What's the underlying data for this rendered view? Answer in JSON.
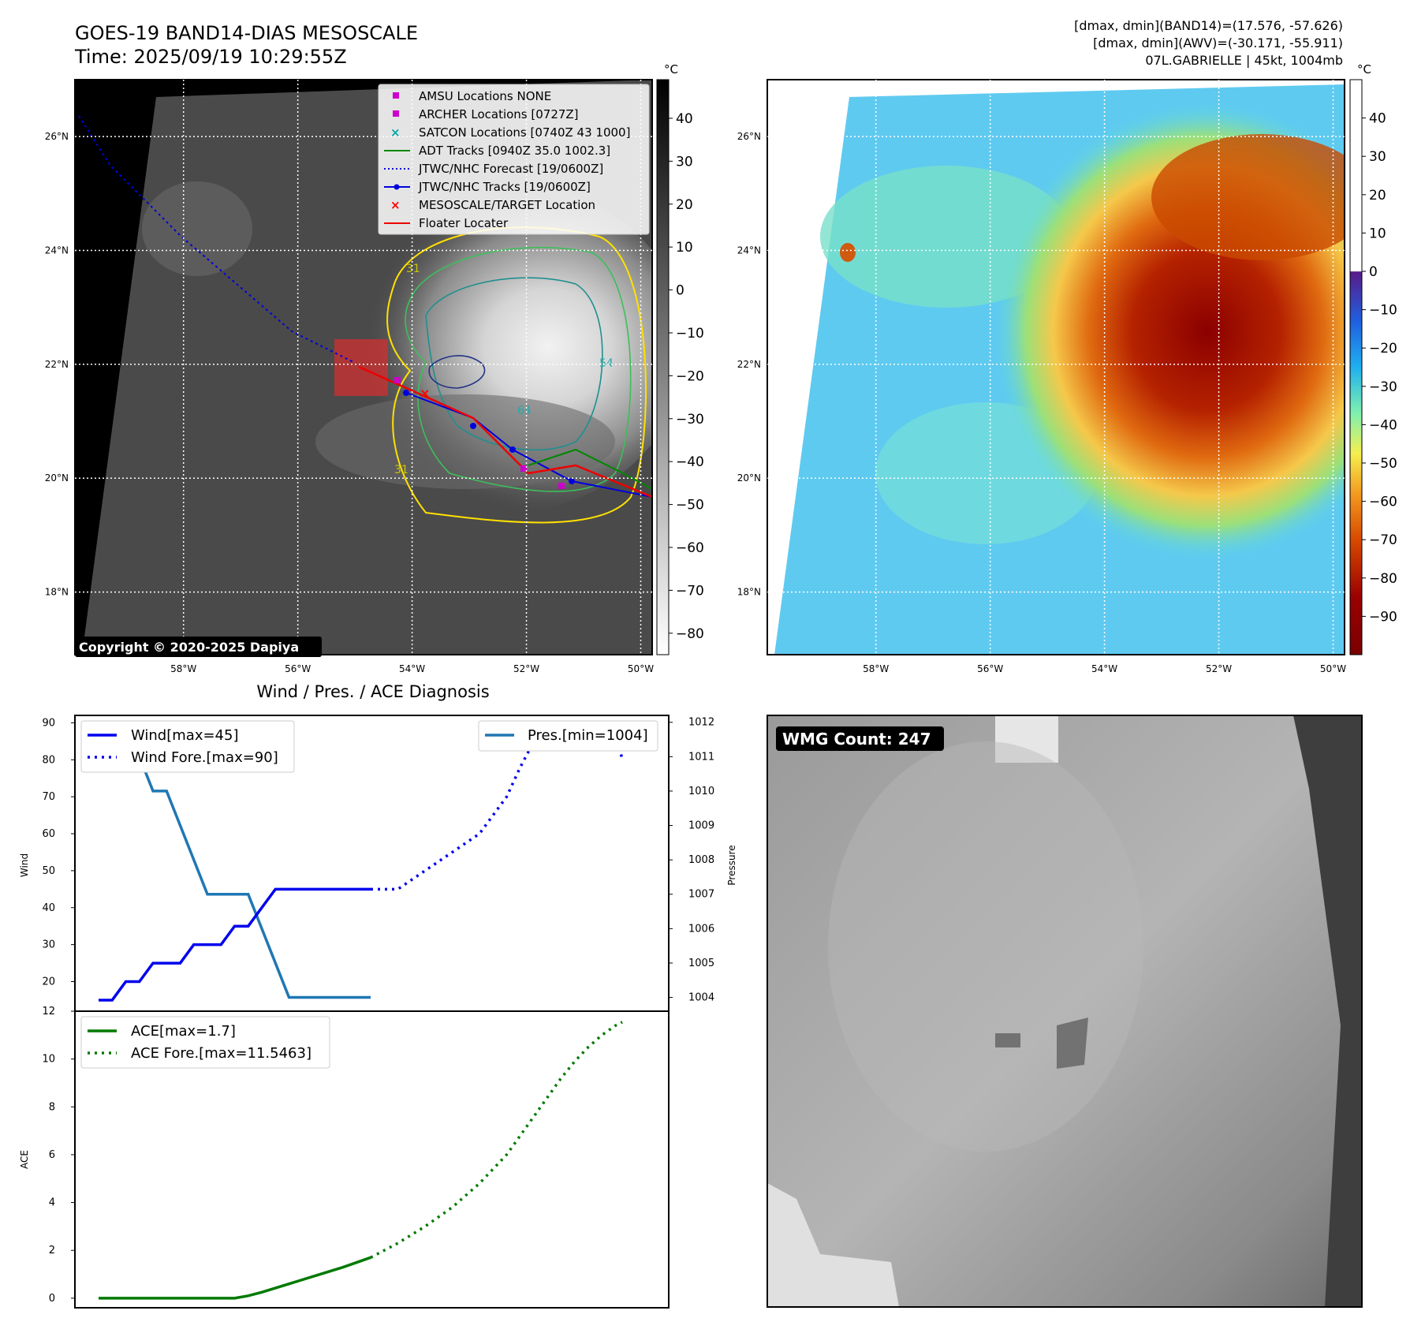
{
  "header": {
    "title": "GOES-19 BAND14-DIAS MESOSCALE",
    "time": "Time: 2025/09/19 10:29:55Z",
    "dmax_band14": "[dmax, dmin](BAND14)=(17.576, -57.626)",
    "dmax_awv": "[dmax, dmin](AWV)=(-30.171, -55.911)",
    "storm": "07L.GABRIELLE | 45kt, 1004mb"
  },
  "copyright": "Copyright © 2020-2025 Dapiya",
  "wmg_label": "WMG Count: 247",
  "colors": {
    "wind": "#0000ee",
    "pressure": "#1f77b4",
    "ace": "#007a00",
    "amsu": "#cc00cc",
    "satcon": "#00aaaa",
    "adt": "#008800",
    "target": "#ff0000"
  },
  "maps": {
    "lat_labels": [
      "26°N",
      "24°N",
      "22°N",
      "20°N",
      "18°N"
    ],
    "lat_values": [
      26,
      24,
      22,
      20,
      18
    ],
    "lon_labels": [
      "58°W",
      "56°W",
      "54°W",
      "52°W",
      "50°W"
    ],
    "lon_values": [
      -58,
      -56,
      -54,
      -52,
      -50
    ],
    "lat_range": [
      16.9,
      27
    ],
    "lon_range": [
      -59.9,
      -49.8
    ],
    "unit": "°C",
    "gray_colorbar_ticks": [
      40,
      30,
      20,
      10,
      0,
      -10,
      -20,
      -30,
      -40,
      -50,
      -60,
      -70,
      -80
    ],
    "gray_colorbar_range": [
      -85,
      49
    ],
    "color_colorbar_ticks": [
      40,
      30,
      20,
      10,
      0,
      -10,
      -20,
      -30,
      -40,
      -50,
      -60,
      -70,
      -80,
      -90
    ],
    "color_colorbar_range": [
      -100,
      50
    ],
    "contour_labels": [
      "31",
      "54",
      "64",
      "31"
    ],
    "legend": [
      {
        "label": "AMSU Locations NONE",
        "icon": "square-marker"
      },
      {
        "label": "ARCHER Locations [0727Z]",
        "icon": "square-marker"
      },
      {
        "label": "SATCON Locations [0740Z 43 1000]",
        "icon": "x-marker"
      },
      {
        "label": "ADT Tracks [0940Z 35.0 1002.3]",
        "icon": "line"
      },
      {
        "label": "JTWC/NHC Forecast [19/0600Z]",
        "icon": "dotted-line"
      },
      {
        "label": "JTWC/NHC Tracks [19/0600Z]",
        "icon": "line-dot"
      },
      {
        "label": "MESOSCALE/TARGET Location",
        "icon": "x-marker"
      },
      {
        "label": "Floater Locater",
        "icon": "line"
      }
    ]
  },
  "chart_data": [
    {
      "type": "line",
      "title": "Wind / Pres. / ACE Diagnosis",
      "ylabel": "Wind",
      "y2label": "Pressure",
      "ylim": [
        12,
        92
      ],
      "y2lim": [
        1003.6,
        1012.2
      ],
      "xlim": [
        0,
        40
      ],
      "yticks": [
        20,
        30,
        40,
        50,
        60,
        70,
        80,
        90
      ],
      "y2ticks": [
        1004,
        1005,
        1006,
        1007,
        1008,
        1009,
        1010,
        1011,
        1012
      ],
      "legend_left": [
        "Wind[max=45]",
        "Wind Fore.[max=90]"
      ],
      "legend_right": [
        "Pres.[min=1004]"
      ],
      "series": [
        {
          "name": "Wind[max=45]",
          "style": "solid",
          "x": [
            0,
            1,
            2,
            3,
            4,
            5,
            6,
            7,
            8,
            9,
            10,
            11,
            12,
            13,
            14,
            15,
            16,
            17,
            18,
            19,
            20
          ],
          "y": [
            15,
            15,
            20,
            20,
            25,
            25,
            25,
            30,
            30,
            30,
            35,
            35,
            40,
            45,
            45,
            45,
            45,
            45,
            45,
            45,
            45
          ]
        },
        {
          "name": "Wind Fore.[max=90]",
          "style": "dotted",
          "x": [
            20,
            21,
            22,
            24,
            26,
            28,
            29,
            30,
            31,
            32,
            33,
            34,
            35,
            36,
            37,
            38,
            38.5
          ],
          "y": [
            45,
            45,
            45,
            50,
            55,
            60,
            65,
            70,
            78,
            85,
            88,
            90,
            90,
            90,
            88,
            88,
            80
          ]
        },
        {
          "name": "Pres.[min=1004]",
          "axis": "y2",
          "x": [
            0,
            1,
            2,
            3,
            4,
            5,
            6,
            7,
            8,
            9,
            10,
            11,
            12,
            13,
            14,
            15,
            16,
            17,
            18,
            19,
            20
          ],
          "y": [
            1012,
            1012,
            1011,
            1011,
            1010,
            1010,
            1009,
            1008,
            1007,
            1007,
            1007,
            1007,
            1006,
            1005,
            1004,
            1004,
            1004,
            1004,
            1004,
            1004,
            1004
          ]
        }
      ]
    },
    {
      "type": "line",
      "ylabel": "ACE",
      "ylim": [
        -0.4,
        12
      ],
      "xlim": [
        0,
        40
      ],
      "yticks": [
        0,
        2,
        4,
        6,
        8,
        10,
        12
      ],
      "legend": [
        "ACE[max=1.7]",
        "ACE Fore.[max=11.5463]"
      ],
      "series": [
        {
          "name": "ACE[max=1.7]",
          "style": "solid",
          "x": [
            0,
            2,
            4,
            6,
            8,
            10,
            11,
            12,
            14,
            16,
            18,
            20
          ],
          "y": [
            0,
            0,
            0,
            0,
            0,
            0,
            0.1,
            0.25,
            0.6,
            0.95,
            1.3,
            1.7
          ]
        },
        {
          "name": "ACE Fore.[max=11.5463]",
          "style": "dotted",
          "x": [
            20,
            22,
            24,
            26,
            28,
            30,
            31,
            32,
            33,
            34,
            35,
            36,
            37,
            38,
            38.5
          ],
          "y": [
            1.7,
            2.3,
            3.0,
            3.8,
            4.8,
            6.0,
            6.8,
            7.6,
            8.4,
            9.2,
            9.9,
            10.5,
            11.0,
            11.4,
            11.5463
          ]
        }
      ]
    }
  ]
}
